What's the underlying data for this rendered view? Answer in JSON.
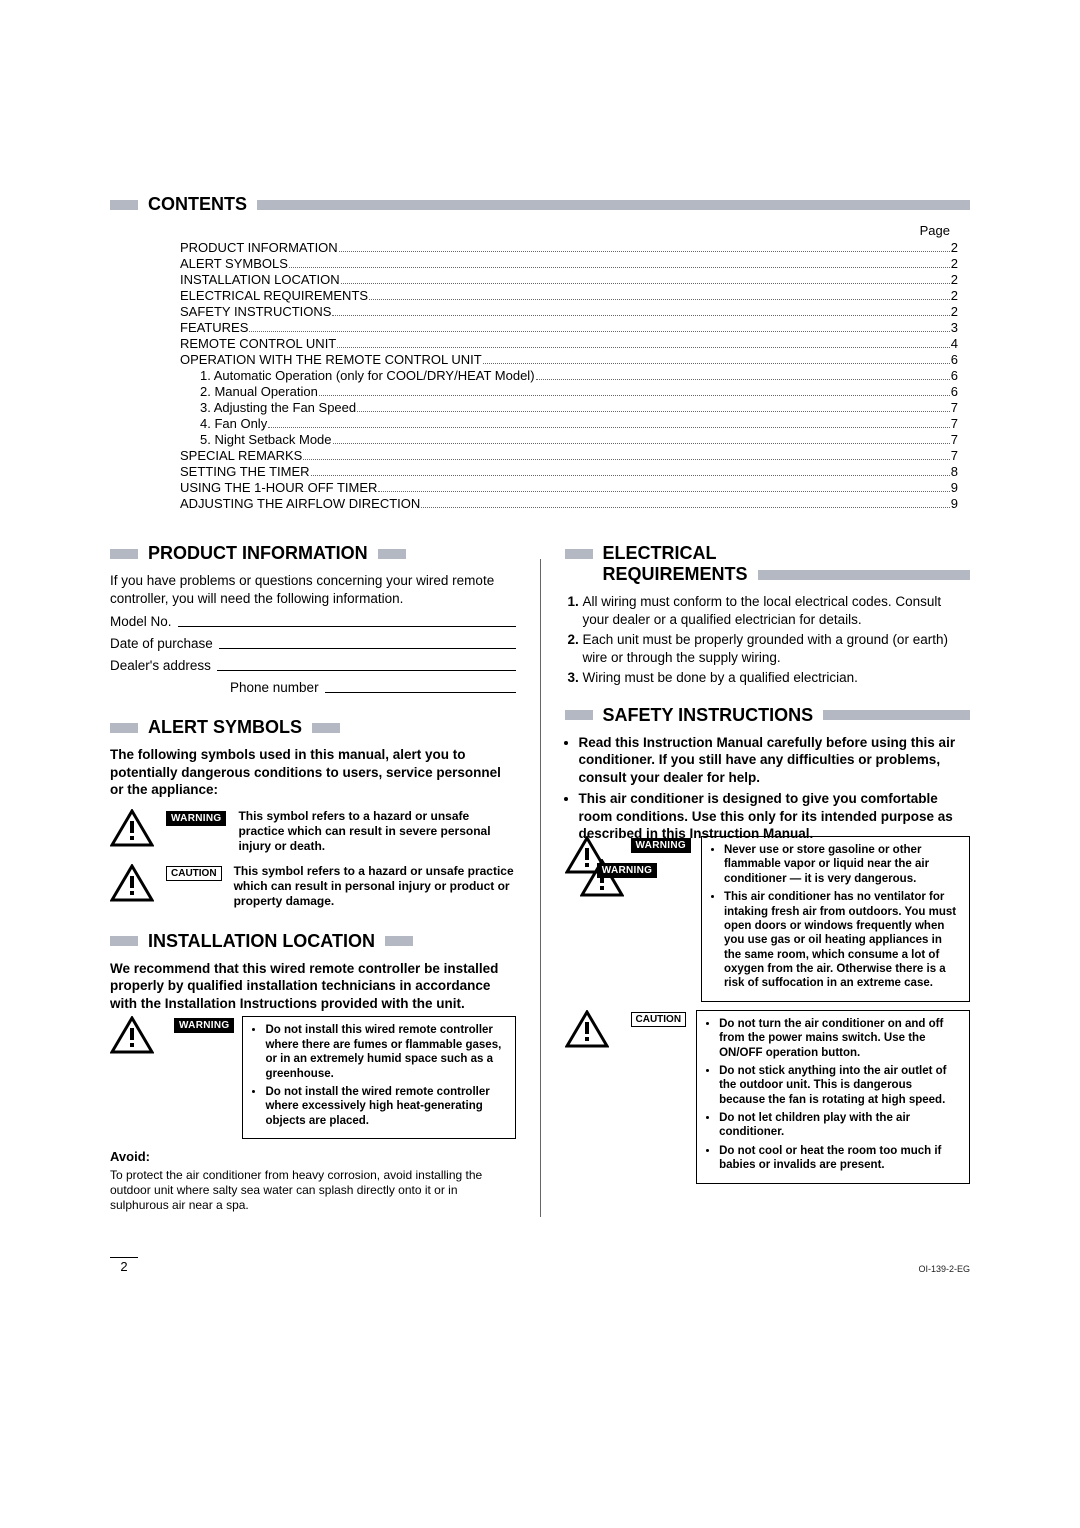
{
  "colors": {
    "bar": "#b4b8c2",
    "text": "#000000",
    "bg": "#ffffff"
  },
  "contents_title": "CONTENTS",
  "page_label": "Page",
  "toc": [
    {
      "label": "PRODUCT INFORMATION",
      "page": "2",
      "indent": 0
    },
    {
      "label": "ALERT SYMBOLS",
      "page": "2",
      "indent": 0
    },
    {
      "label": "INSTALLATION LOCATION",
      "page": "2",
      "indent": 0
    },
    {
      "label": "ELECTRICAL REQUIREMENTS",
      "page": "2",
      "indent": 0
    },
    {
      "label": "SAFETY INSTRUCTIONS",
      "page": "2",
      "indent": 0
    },
    {
      "label": "FEATURES",
      "page": "3",
      "indent": 0
    },
    {
      "label": "REMOTE CONTROL UNIT",
      "page": "4",
      "indent": 0
    },
    {
      "label": "OPERATION WITH THE REMOTE CONTROL UNIT",
      "page": "6",
      "indent": 0
    },
    {
      "label": "1. Automatic Operation (only for COOL/DRY/HEAT Model)",
      "page": "6",
      "indent": 1
    },
    {
      "label": "2. Manual Operation",
      "page": "6",
      "indent": 1
    },
    {
      "label": "3. Adjusting the Fan Speed",
      "page": "7",
      "indent": 1
    },
    {
      "label": "4. Fan Only",
      "page": "7",
      "indent": 1
    },
    {
      "label": "5. Night Setback Mode",
      "page": "7",
      "indent": 1
    },
    {
      "label": "SPECIAL REMARKS",
      "page": "7",
      "indent": 0
    },
    {
      "label": "SETTING THE TIMER",
      "page": "8",
      "indent": 0
    },
    {
      "label": "USING THE 1-HOUR OFF TIMER",
      "page": "9",
      "indent": 0
    },
    {
      "label": "ADJUSTING THE AIRFLOW DIRECTION",
      "page": "9",
      "indent": 0
    }
  ],
  "left": {
    "product_info": {
      "title": "PRODUCT INFORMATION",
      "intro": "If you have problems or questions concerning your wired remote controller, you will need the following information.",
      "fields": {
        "model": "Model No.",
        "date": "Date of purchase",
        "dealer": "Dealer's address",
        "phone": "Phone number"
      }
    },
    "alert_symbols": {
      "title": "ALERT SYMBOLS",
      "intro": "The following symbols used in this manual, alert you to potentially dangerous conditions to users, service personnel or the appliance:",
      "warning_label": "WARNING",
      "warning_text": "This symbol refers to a hazard or unsafe practice which can result in severe personal injury or death.",
      "caution_label": "CAUTION",
      "caution_text": "This symbol refers to a hazard or unsafe practice which can result in personal injury or product or property damage."
    },
    "install": {
      "title": "INSTALLATION LOCATION",
      "intro": "We recommend that this wired remote controller be installed properly by qualified installation technicians in accordance with the Installation Instructions provided with the unit.",
      "warning_label": "WARNING",
      "warn_items": [
        "Do not install this wired remote controller where there are fumes or flammable gases, or in an extremely humid space such as a greenhouse.",
        "Do not install the wired remote controller where excessively high heat-generating objects are placed."
      ],
      "avoid_h": "Avoid:",
      "avoid_text": "To protect the air conditioner from heavy corrosion, avoid installing the outdoor unit where salty sea water can splash directly onto it or in sulphurous air near a spa."
    }
  },
  "right": {
    "electrical": {
      "title": "ELECTRICAL REQUIREMENTS",
      "items": [
        "All wiring must conform to the local electrical codes. Consult your dealer or a qualified electrician for details.",
        "Each unit must be properly grounded with a ground (or earth) wire or through the supply wiring.",
        "Wiring must be done by a qualified electrician."
      ]
    },
    "safety": {
      "title": "SAFETY INSTRUCTIONS",
      "intro_items": [
        "Read this Instruction Manual carefully before using this air conditioner. If you still have any difficulties or problems, consult your dealer for help.",
        "This air conditioner is designed to give you comfortable room conditions. Use this only for its intended purpose as described in this Instruction Manual."
      ],
      "warning_label": "WARNING",
      "warning_items": [
        "Never use or store gasoline or other flammable vapor or liquid near the air conditioner — it is very dangerous.",
        "This air conditioner has no ventilator for intaking fresh air from outdoors. You must open doors or windows frequently when you use gas or oil heating appliances in the same room, which consume a lot of oxygen from the air. Otherwise there is a risk of suffocation in an extreme case."
      ],
      "caution_label": "CAUTION",
      "caution_items": [
        "Do not turn the air conditioner on and off from the power mains switch. Use the ON/OFF operation button.",
        "Do not stick anything into the air outlet of the outdoor unit. This is dangerous because the fan is rotating at high speed.",
        "Do not let children play with the air conditioner.",
        "Do not cool or heat the room too much if babies or invalids are present."
      ]
    }
  },
  "footer": {
    "page_num": "2",
    "doc_id": "OI-139-2-EG"
  }
}
